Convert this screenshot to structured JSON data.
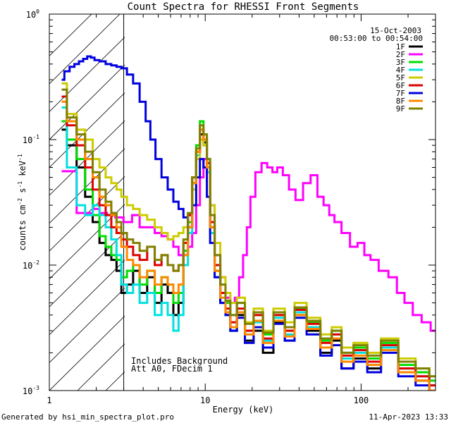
{
  "page": {
    "footer_left": "Generated by hsi_min_spectra_plot.pro",
    "footer_right": "11-Apr-2023 13:33"
  },
  "chart_data": {
    "type": "line",
    "title": "Count Spectra for RHESSI Front Segments",
    "xlabel": "Energy (keV)",
    "ylabel_parts": {
      "base": "counts cm",
      "e1": "-2",
      "mid": " s",
      "e2": "-1",
      "end": " keV",
      "e3": "-1"
    },
    "xscale": "log",
    "yscale": "log",
    "xlim": [
      1,
      300
    ],
    "ylim": [
      0.001,
      1
    ],
    "x_ticks": [
      {
        "value": 1,
        "label": "1"
      },
      {
        "value": 10,
        "label": "10"
      },
      {
        "value": 100,
        "label": "100"
      }
    ],
    "y_ticks": [
      {
        "value": 0.001,
        "mantissa": "10",
        "exponent": "-3"
      },
      {
        "value": 0.01,
        "mantissa": "10",
        "exponent": "-2"
      },
      {
        "value": 0.1,
        "mantissa": "10",
        "exponent": "-1"
      },
      {
        "value": 1,
        "mantissa": "10",
        "exponent": "0"
      }
    ],
    "date_label": "15-Oct-2003",
    "time_label": "00:53:00 to 00:54:00",
    "annotation_lines": [
      "Includes Background",
      "Att A0, FDecim 1"
    ],
    "shaded_region": {
      "x_min": 1,
      "x_max": 3,
      "style": "diagonal hatch"
    },
    "vertical_line_at": 3,
    "series": [
      {
        "name": "1F",
        "color": "#000000",
        "x": [
          1.2,
          1.4,
          1.6,
          1.8,
          2.0,
          2.2,
          2.4,
          2.6,
          2.8,
          3.0,
          3.3,
          3.6,
          4.0,
          4.5,
          5.0,
          5.5,
          6.0,
          6.5,
          7.0,
          7.5,
          8.0,
          8.5,
          9.0,
          9.5,
          10.0,
          10.5,
          11.0,
          12,
          13,
          14,
          15,
          17,
          19,
          22,
          25,
          30,
          35,
          40,
          50,
          60,
          70,
          80,
          100,
          120,
          150,
          200,
          250,
          300
        ],
        "y": [
          0.12,
          0.09,
          0.06,
          0.035,
          0.022,
          0.015,
          0.012,
          0.011,
          0.009,
          0.006,
          0.007,
          0.009,
          0.006,
          0.008,
          0.005,
          0.007,
          0.006,
          0.004,
          0.005,
          0.012,
          0.02,
          0.045,
          0.08,
          0.11,
          0.095,
          0.06,
          0.02,
          0.009,
          0.005,
          0.004,
          0.003,
          0.004,
          0.0025,
          0.003,
          0.002,
          0.0035,
          0.0025,
          0.004,
          0.003,
          0.002,
          0.0025,
          0.0015,
          0.0018,
          0.0015,
          0.0022,
          0.0014,
          0.0012,
          0.001
        ]
      },
      {
        "name": "2F",
        "color": "#ff00ff",
        "x": [
          1.2,
          1.4,
          1.6,
          1.8,
          2.0,
          2.2,
          2.5,
          2.8,
          3.2,
          3.6,
          4.0,
          4.5,
          5.0,
          5.5,
          6.0,
          6.5,
          7.0,
          7.5,
          8.0,
          8.5,
          9.0,
          9.5,
          10.0,
          10.5,
          11.0,
          12,
          13,
          14,
          15,
          16,
          17,
          18,
          19,
          20,
          22,
          24,
          26,
          28,
          30,
          33,
          36,
          40,
          45,
          50,
          55,
          60,
          65,
          70,
          80,
          90,
          100,
          110,
          120,
          140,
          160,
          180,
          200,
          230,
          260,
          300
        ],
        "y": [
          0.056,
          0.056,
          0.026,
          0.026,
          0.028,
          0.026,
          0.025,
          0.024,
          0.022,
          0.025,
          0.02,
          0.02,
          0.018,
          0.017,
          0.016,
          0.014,
          0.012,
          0.013,
          0.014,
          0.018,
          0.03,
          0.05,
          0.07,
          0.06,
          0.03,
          0.012,
          0.008,
          0.0055,
          0.005,
          0.0055,
          0.008,
          0.012,
          0.02,
          0.035,
          0.055,
          0.065,
          0.06,
          0.055,
          0.06,
          0.052,
          0.04,
          0.033,
          0.045,
          0.052,
          0.035,
          0.03,
          0.025,
          0.022,
          0.018,
          0.014,
          0.015,
          0.012,
          0.011,
          0.009,
          0.008,
          0.006,
          0.005,
          0.004,
          0.0035,
          0.003
        ]
      },
      {
        "name": "3F",
        "color": "#00dd00",
        "x": [
          1.2,
          1.4,
          1.6,
          1.8,
          2.0,
          2.2,
          2.4,
          2.6,
          2.8,
          3.0,
          3.3,
          3.6,
          4.0,
          4.5,
          5.0,
          5.5,
          6.0,
          6.5,
          7.0,
          7.5,
          8.0,
          8.5,
          9.0,
          9.5,
          10.0,
          10.5,
          11.0,
          12,
          13,
          14,
          15,
          17,
          19,
          22,
          25,
          30,
          35,
          40,
          50,
          60,
          70,
          80,
          100,
          120,
          150,
          200,
          250,
          300
        ],
        "y": [
          0.14,
          0.1,
          0.07,
          0.04,
          0.025,
          0.017,
          0.014,
          0.012,
          0.011,
          0.008,
          0.009,
          0.01,
          0.007,
          0.009,
          0.006,
          0.008,
          0.007,
          0.005,
          0.006,
          0.013,
          0.022,
          0.05,
          0.09,
          0.14,
          0.11,
          0.07,
          0.022,
          0.01,
          0.006,
          0.005,
          0.004,
          0.005,
          0.003,
          0.004,
          0.0028,
          0.004,
          0.003,
          0.0045,
          0.0035,
          0.0025,
          0.003,
          0.002,
          0.0022,
          0.0018,
          0.0024,
          0.0016,
          0.0014,
          0.0012
        ]
      },
      {
        "name": "4F",
        "color": "#00e0e0",
        "x": [
          1.2,
          1.4,
          1.6,
          1.8,
          2.0,
          2.2,
          2.4,
          2.6,
          2.8,
          3.0,
          3.3,
          3.6,
          4.0,
          4.5,
          5.0,
          5.5,
          6.0,
          6.5,
          7.0,
          7.5,
          8.0,
          8.5,
          9.0,
          9.5,
          10.0,
          10.5,
          11.0,
          12,
          13,
          14,
          15,
          17,
          19,
          22,
          25,
          30,
          35,
          40,
          50,
          60,
          70,
          80,
          100,
          120,
          150,
          200,
          250,
          300
        ],
        "y": [
          0.18,
          0.06,
          0.03,
          0.025,
          0.03,
          0.025,
          0.02,
          0.016,
          0.012,
          0.007,
          0.006,
          0.007,
          0.005,
          0.006,
          0.004,
          0.005,
          0.004,
          0.003,
          0.004,
          0.01,
          0.018,
          0.04,
          0.075,
          0.1,
          0.09,
          0.055,
          0.018,
          0.008,
          0.005,
          0.004,
          0.003,
          0.0042,
          0.0028,
          0.0035,
          0.0025,
          0.0038,
          0.0028,
          0.0042,
          0.0032,
          0.0022,
          0.0028,
          0.0018,
          0.002,
          0.0016,
          0.0022,
          0.0015,
          0.0013,
          0.0011
        ]
      },
      {
        "name": "5F",
        "color": "#cccc00",
        "x": [
          1.2,
          1.4,
          1.6,
          1.8,
          2.0,
          2.2,
          2.4,
          2.6,
          2.8,
          3.0,
          3.3,
          3.6,
          4.0,
          4.5,
          5.0,
          5.5,
          6.0,
          6.5,
          7.0,
          7.5,
          8.0,
          8.5,
          9.0,
          9.5,
          10.0,
          10.5,
          11.0,
          12,
          13,
          14,
          15,
          17,
          19,
          22,
          25,
          30,
          35,
          40,
          50,
          60,
          70,
          80,
          100,
          120,
          150,
          200,
          250,
          300
        ],
        "y": [
          0.28,
          0.16,
          0.12,
          0.1,
          0.07,
          0.06,
          0.05,
          0.045,
          0.04,
          0.035,
          0.03,
          0.028,
          0.025,
          0.023,
          0.02,
          0.018,
          0.016,
          0.017,
          0.018,
          0.02,
          0.025,
          0.04,
          0.07,
          0.1,
          0.09,
          0.06,
          0.03,
          0.015,
          0.008,
          0.006,
          0.005,
          0.0055,
          0.0035,
          0.0045,
          0.003,
          0.0045,
          0.0035,
          0.005,
          0.0038,
          0.0028,
          0.0032,
          0.0022,
          0.0024,
          0.002,
          0.0026,
          0.0018,
          0.0015,
          0.0013
        ]
      },
      {
        "name": "6F",
        "color": "#dd0000",
        "x": [
          1.2,
          1.4,
          1.6,
          1.8,
          2.0,
          2.2,
          2.4,
          2.6,
          2.8,
          3.0,
          3.3,
          3.6,
          4.0,
          4.5,
          5.0,
          5.5,
          6.0,
          6.5,
          7.0,
          7.5,
          8.0,
          8.5,
          9.0,
          9.5,
          10.0,
          10.5,
          11.0,
          12,
          13,
          14,
          15,
          17,
          19,
          22,
          25,
          30,
          35,
          40,
          50,
          60,
          70,
          80,
          100,
          120,
          150,
          200,
          250,
          300
        ],
        "y": [
          0.22,
          0.13,
          0.09,
          0.06,
          0.04,
          0.03,
          0.025,
          0.02,
          0.018,
          0.016,
          0.014,
          0.012,
          0.011,
          0.014,
          0.01,
          0.012,
          0.01,
          0.009,
          0.01,
          0.015,
          0.025,
          0.05,
          0.08,
          0.12,
          0.1,
          0.065,
          0.022,
          0.01,
          0.006,
          0.0045,
          0.0035,
          0.0045,
          0.003,
          0.004,
          0.0026,
          0.004,
          0.003,
          0.0044,
          0.0034,
          0.0024,
          0.0028,
          0.0019,
          0.0021,
          0.0017,
          0.0023,
          0.0015,
          0.0013,
          0.0011
        ]
      },
      {
        "name": "7F",
        "color": "#0000dd",
        "x": [
          1.2,
          1.3,
          1.4,
          1.5,
          1.6,
          1.7,
          1.8,
          1.9,
          2.0,
          2.2,
          2.4,
          2.6,
          2.8,
          3.0,
          3.3,
          3.6,
          4.0,
          4.3,
          4.6,
          5.0,
          5.5,
          6.0,
          6.5,
          7.0,
          7.5,
          8.0,
          8.5,
          9.0,
          9.5,
          10.0,
          10.5,
          11.0,
          12,
          13,
          14,
          15,
          17,
          19,
          22,
          25,
          30,
          35,
          40,
          50,
          60,
          70,
          80,
          100,
          120,
          150,
          200,
          250,
          300
        ],
        "y": [
          0.3,
          0.35,
          0.38,
          0.4,
          0.42,
          0.44,
          0.46,
          0.45,
          0.43,
          0.42,
          0.4,
          0.39,
          0.38,
          0.37,
          0.33,
          0.28,
          0.2,
          0.14,
          0.1,
          0.07,
          0.05,
          0.04,
          0.032,
          0.028,
          0.024,
          0.02,
          0.03,
          0.05,
          0.07,
          0.06,
          0.035,
          0.015,
          0.008,
          0.005,
          0.004,
          0.003,
          0.0038,
          0.0024,
          0.0032,
          0.0022,
          0.0034,
          0.0025,
          0.0038,
          0.0028,
          0.0019,
          0.0023,
          0.0015,
          0.0017,
          0.0014,
          0.002,
          0.0013,
          0.0011,
          0.001
        ]
      },
      {
        "name": "8F",
        "color": "#ff8800",
        "x": [
          1.2,
          1.4,
          1.6,
          1.8,
          2.0,
          2.2,
          2.4,
          2.6,
          2.8,
          3.0,
          3.3,
          3.6,
          4.0,
          4.5,
          5.0,
          5.5,
          6.0,
          6.5,
          7.0,
          7.5,
          8.0,
          8.5,
          9.0,
          9.5,
          10.0,
          10.5,
          11.0,
          12,
          13,
          14,
          15,
          17,
          19,
          22,
          25,
          30,
          35,
          40,
          50,
          60,
          70,
          80,
          100,
          120,
          150,
          200,
          250,
          300
        ],
        "y": [
          0.2,
          0.14,
          0.1,
          0.07,
          0.05,
          0.035,
          0.03,
          0.025,
          0.02,
          0.014,
          0.011,
          0.01,
          0.008,
          0.009,
          0.007,
          0.008,
          0.007,
          0.006,
          0.007,
          0.012,
          0.02,
          0.045,
          0.08,
          0.12,
          0.1,
          0.06,
          0.02,
          0.009,
          0.0055,
          0.0042,
          0.0032,
          0.0042,
          0.0028,
          0.0036,
          0.0024,
          0.0036,
          0.0027,
          0.004,
          0.0031,
          0.0022,
          0.0026,
          0.0017,
          0.0019,
          0.0016,
          0.0021,
          0.0014,
          0.0012,
          0.001
        ]
      },
      {
        "name": "9F",
        "color": "#808000",
        "x": [
          1.2,
          1.4,
          1.6,
          1.8,
          2.0,
          2.2,
          2.4,
          2.6,
          2.8,
          3.0,
          3.3,
          3.6,
          4.0,
          4.5,
          5.0,
          5.5,
          6.0,
          6.5,
          7.0,
          7.5,
          8.0,
          8.5,
          9.0,
          9.5,
          10.0,
          10.5,
          11.0,
          12,
          13,
          14,
          15,
          17,
          19,
          22,
          25,
          30,
          35,
          40,
          50,
          60,
          70,
          80,
          100,
          120,
          150,
          200,
          250,
          300
        ],
        "y": [
          0.25,
          0.15,
          0.11,
          0.08,
          0.055,
          0.04,
          0.032,
          0.026,
          0.022,
          0.018,
          0.016,
          0.015,
          0.013,
          0.014,
          0.011,
          0.012,
          0.01,
          0.009,
          0.01,
          0.016,
          0.026,
          0.05,
          0.085,
          0.13,
          0.11,
          0.07,
          0.025,
          0.012,
          0.007,
          0.0052,
          0.004,
          0.005,
          0.0034,
          0.0042,
          0.0029,
          0.0042,
          0.0032,
          0.0046,
          0.0036,
          0.0026,
          0.003,
          0.002,
          0.0023,
          0.0019,
          0.0025,
          0.0017,
          0.0015,
          0.0013
        ]
      }
    ]
  }
}
